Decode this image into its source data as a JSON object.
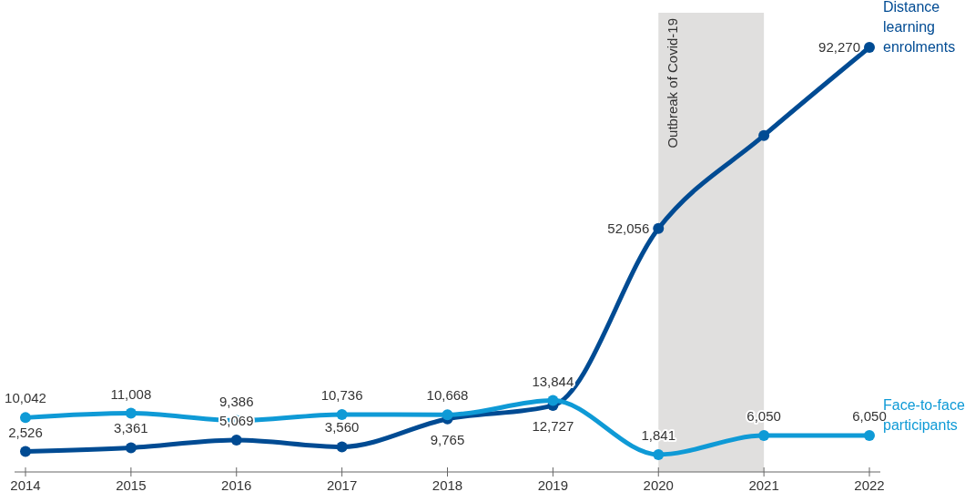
{
  "chart_data": {
    "type": "line",
    "categories": [
      "2014",
      "2015",
      "2016",
      "2017",
      "2018",
      "2019",
      "2020",
      "2021",
      "2022"
    ],
    "series": [
      {
        "name": "Distance learning enrolments",
        "color": "#004b93",
        "values": [
          2526,
          3361,
          5069,
          3560,
          9765,
          12727,
          52056,
          72700,
          92270
        ],
        "value_labels": [
          "2,526",
          "3,361",
          "5,069",
          "3,560",
          "9,765",
          "12,727",
          "52,056",
          null,
          "92,270"
        ]
      },
      {
        "name": "Face-to-face participants",
        "color": "#0f9ad6",
        "values": [
          10042,
          11008,
          9386,
          10736,
          10668,
          13844,
          1841,
          6050,
          6050
        ],
        "value_labels": [
          "10,042",
          "11,008",
          "9,386",
          "10,736",
          "10,668",
          "13,844",
          "1,841",
          "6,050",
          "6,050"
        ]
      }
    ],
    "bands": [
      {
        "axis": "x",
        "from": "2020",
        "to": "2021",
        "label": "Outbreak of Covid-19",
        "color": "#e0dfde"
      }
    ],
    "marker": "circle",
    "line_style": "solid",
    "grid": false
  }
}
